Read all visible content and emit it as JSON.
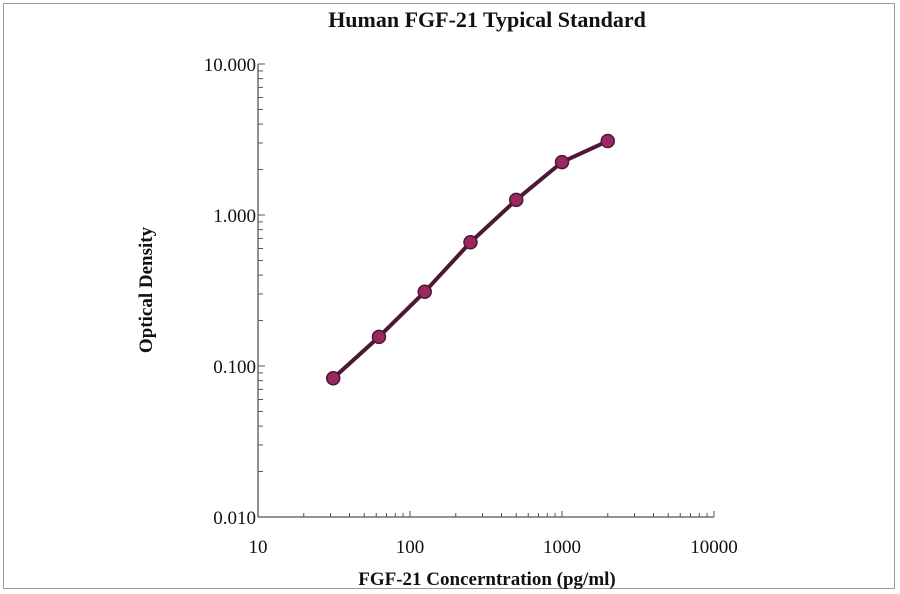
{
  "chart_data": {
    "type": "line",
    "title": "Human FGF-21 Typical Standard",
    "xlabel": "FGF-21 Concerntration (pg/ml)",
    "ylabel": "Optical Density",
    "x_scale": "log",
    "y_scale": "log",
    "xlim": [
      10,
      10000
    ],
    "ylim": [
      0.01,
      10
    ],
    "x_ticks": [
      "10",
      "100",
      "1000",
      "10000"
    ],
    "y_ticks": [
      "0.010",
      "0.100",
      "1.000",
      "10.000"
    ],
    "grid": false,
    "legend": "none",
    "x": [
      31.25,
      62.5,
      125,
      250,
      500,
      1000,
      2000
    ],
    "y": [
      0.083,
      0.156,
      0.31,
      0.66,
      1.26,
      2.24,
      3.09
    ],
    "colors": {
      "line": "#4e1733",
      "marker": "#9b2860"
    }
  }
}
